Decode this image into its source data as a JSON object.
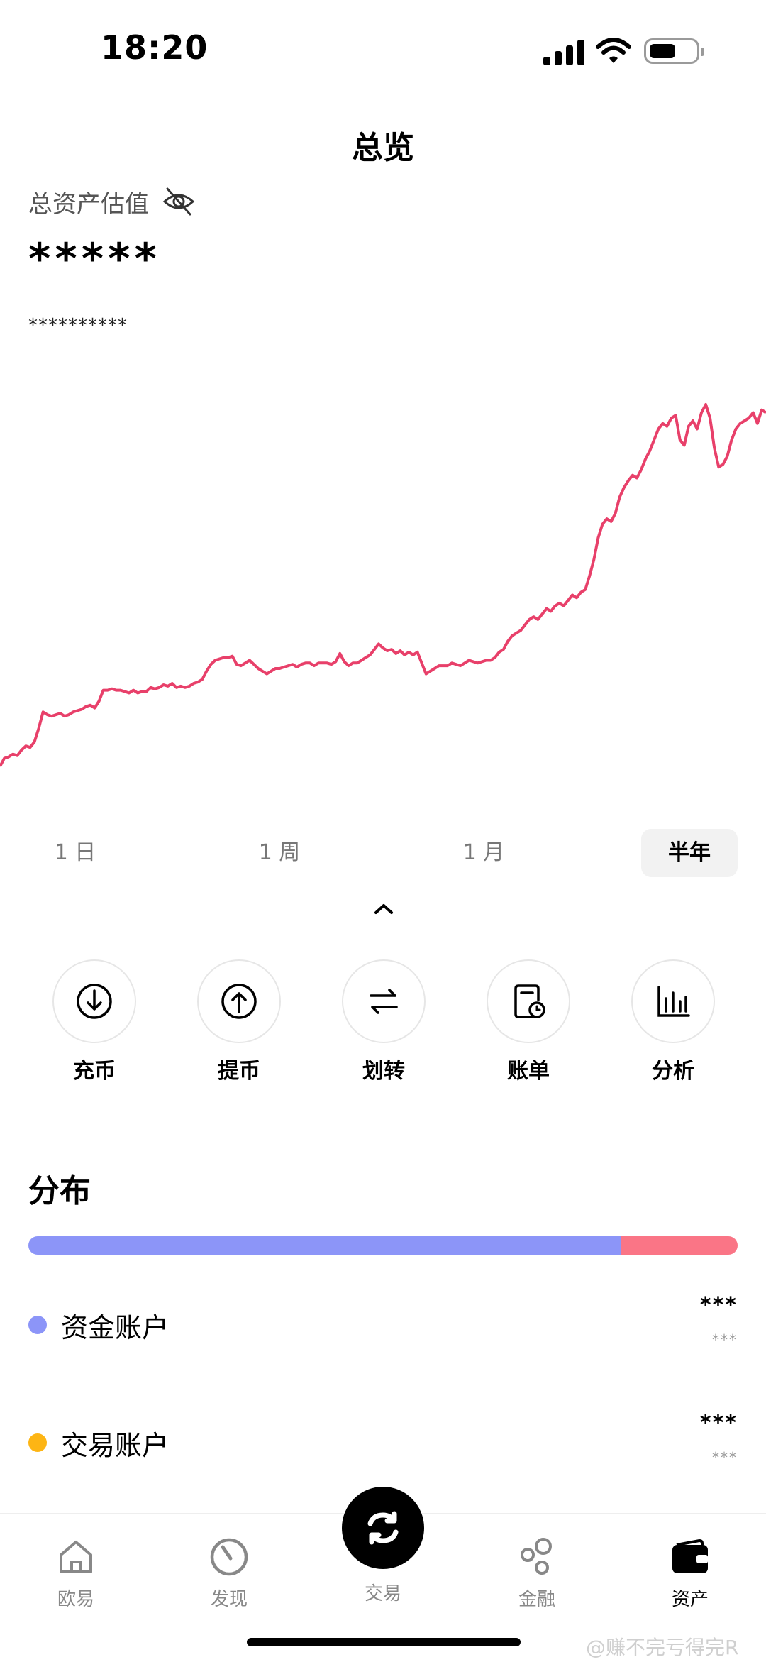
{
  "status": {
    "time": "18:20"
  },
  "header": {
    "title": "总览"
  },
  "overview": {
    "label": "总资产估值",
    "value": "*****",
    "sub": "**********"
  },
  "chart_data": {
    "type": "line",
    "title": "",
    "xlabel": "",
    "ylabel": "",
    "series": [
      {
        "name": "",
        "color": "#e8406a",
        "values": [
          0,
          6,
          7,
          9,
          8,
          12,
          15,
          14,
          18,
          28,
          40,
          38,
          37,
          38,
          39,
          37,
          38,
          40,
          41,
          42,
          44,
          45,
          43,
          48,
          56,
          56,
          57,
          56,
          56,
          55,
          54,
          56,
          54,
          55,
          55,
          58,
          57,
          58,
          60,
          59,
          61,
          58,
          59,
          58,
          59,
          61,
          62,
          64,
          70,
          75,
          78,
          79,
          80,
          80,
          81,
          75,
          74,
          76,
          78,
          75,
          72,
          70,
          68,
          70,
          72,
          72,
          73,
          74,
          75,
          73,
          75,
          76,
          76,
          74,
          76,
          76,
          76,
          75,
          77,
          83,
          77,
          74,
          76,
          76,
          78,
          80,
          82,
          86,
          90,
          87,
          85,
          86,
          83,
          85,
          82,
          84,
          82,
          84,
          76,
          68,
          70,
          72,
          74,
          74,
          74,
          76,
          75,
          74,
          76,
          78,
          77,
          76,
          77,
          78,
          78,
          80,
          84,
          86,
          92,
          96,
          98,
          100,
          104,
          108,
          110,
          108,
          112,
          116,
          114,
          118,
          120,
          118,
          122,
          126,
          124,
          128,
          130,
          140,
          152,
          168,
          178,
          182,
          180,
          186,
          198,
          205,
          210,
          214,
          212,
          218,
          226,
          232,
          240,
          248,
          252,
          250,
          256,
          258,
          240,
          236,
          250,
          254,
          248,
          260,
          266,
          256,
          234,
          220,
          222,
          228,
          240,
          248,
          252,
          254,
          256,
          260,
          252,
          262,
          260
        ]
      }
    ],
    "grid": false,
    "legend": "none"
  },
  "periods": [
    {
      "label": "1 日",
      "active": false
    },
    {
      "label": "1 周",
      "active": false
    },
    {
      "label": "1 月",
      "active": false
    },
    {
      "label": "半年",
      "active": true
    }
  ],
  "actions": [
    {
      "label": "充币",
      "icon": "deposit-icon"
    },
    {
      "label": "提币",
      "icon": "withdraw-icon"
    },
    {
      "label": "划转",
      "icon": "transfer-icon"
    },
    {
      "label": "账单",
      "icon": "bill-icon"
    },
    {
      "label": "分析",
      "icon": "analysis-icon"
    }
  ],
  "distribution": {
    "title": "分布",
    "segments": [
      {
        "fraction": 0.835,
        "color": "#8c95f8"
      },
      {
        "fraction": 0.165,
        "color": "#fa7586"
      }
    ],
    "accounts": [
      {
        "name": "资金账户",
        "color": "#8c95f8",
        "value": "***",
        "sub": "***"
      },
      {
        "name": "交易账户",
        "color": "#fdb514",
        "value": "***",
        "sub": "***"
      }
    ]
  },
  "tabs": [
    {
      "label": "欧易",
      "icon": "home-icon",
      "active": false
    },
    {
      "label": "发现",
      "icon": "discover-icon",
      "active": false
    },
    {
      "label": "交易",
      "icon": "trade-icon",
      "active": false
    },
    {
      "label": "金融",
      "icon": "finance-icon",
      "active": false
    },
    {
      "label": "资产",
      "icon": "wallet-icon",
      "active": true
    }
  ],
  "watermark": "@赚不完亏得完R"
}
